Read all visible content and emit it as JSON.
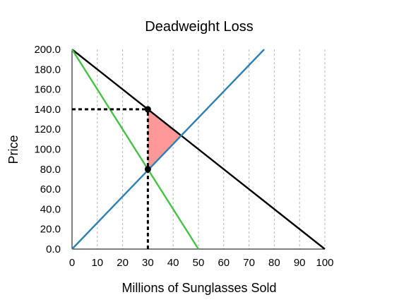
{
  "chart_data": {
    "type": "line",
    "title": "Deadweight Loss",
    "xlabel": "Millions of Sunglasses Sold",
    "ylabel": "Price",
    "xlim": [
      0,
      100
    ],
    "ylim": [
      0,
      200
    ],
    "x_ticks": [
      "0",
      "10",
      "20",
      "30",
      "40",
      "50",
      "60",
      "70",
      "80",
      "90",
      "100"
    ],
    "y_ticks": [
      "0.0",
      "20.0",
      "40.0",
      "60.0",
      "80.0",
      "100.0",
      "120.0",
      "140.0",
      "160.0",
      "180.0",
      "200.0"
    ],
    "grid": "vertical dashed",
    "series": [
      {
        "color": "#000000",
        "points": [
          [
            0,
            200
          ],
          [
            100,
            0
          ]
        ]
      },
      {
        "color": "#2e7fad",
        "points": [
          [
            0,
            0
          ],
          [
            76,
            200
          ]
        ]
      },
      {
        "color": "#44c244",
        "points": [
          [
            0,
            200
          ],
          [
            50,
            0
          ]
        ]
      }
    ],
    "shaded_region": {
      "color": "#ff9999",
      "points": [
        [
          30,
          140
        ],
        [
          30,
          80
        ],
        [
          43,
          114
        ]
      ]
    },
    "points": [
      [
        30,
        140
      ],
      [
        30,
        80
      ]
    ],
    "guide_lines": [
      {
        "style": "dotted",
        "points": [
          [
            0,
            140
          ],
          [
            30,
            140
          ]
        ]
      },
      {
        "style": "dotted",
        "points": [
          [
            30,
            0
          ],
          [
            30,
            140
          ]
        ]
      }
    ]
  }
}
